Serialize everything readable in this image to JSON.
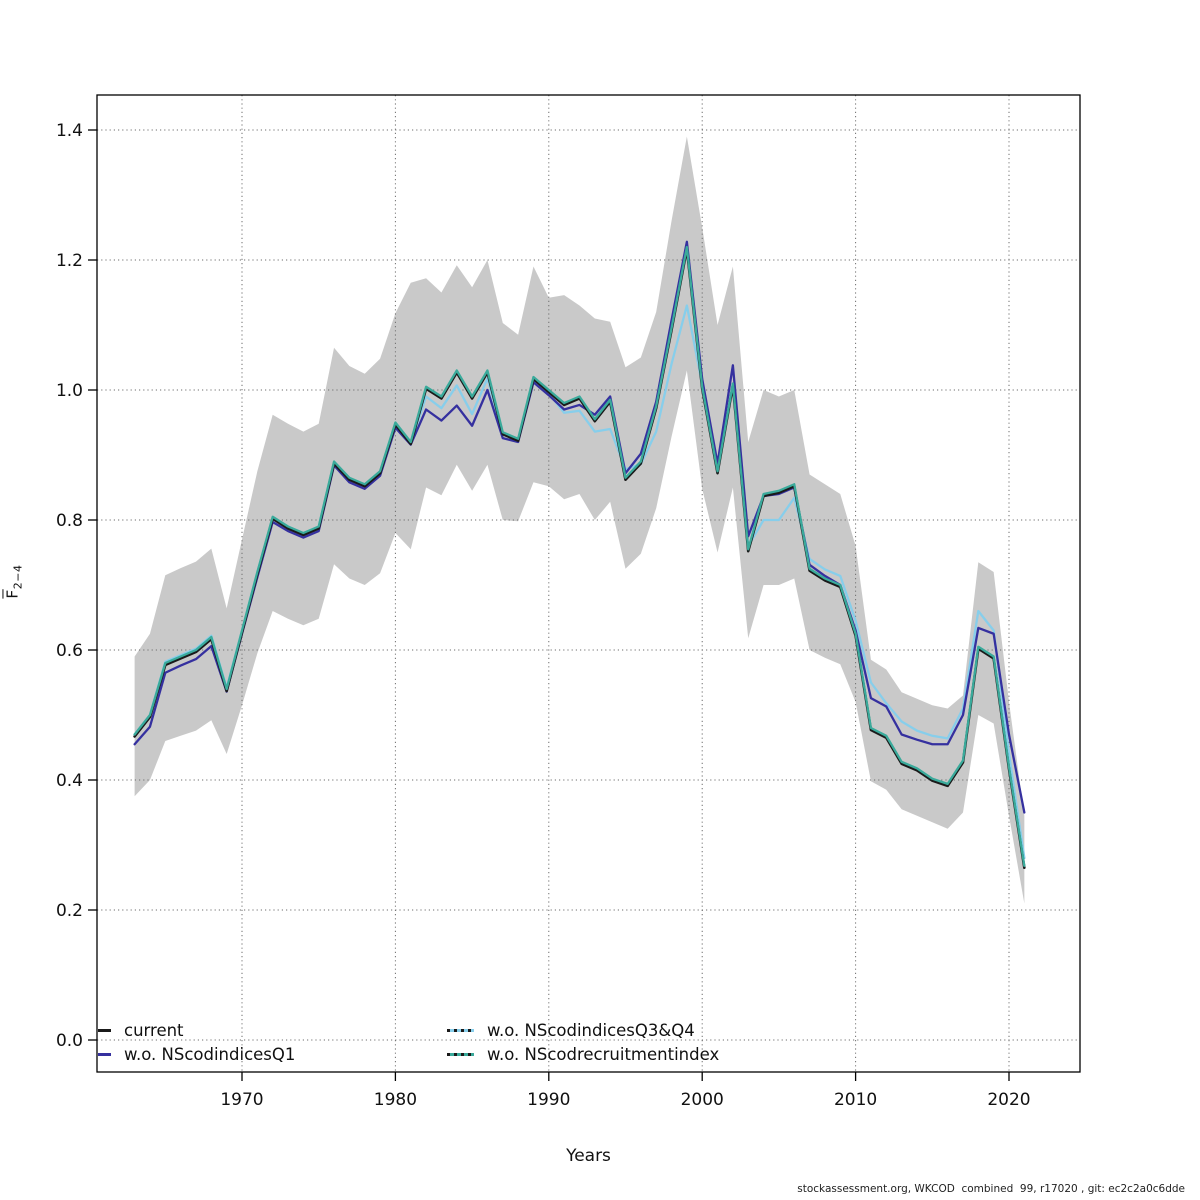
{
  "axes": {
    "x_label": "Years",
    "y_label_base": "F",
    "y_label_sub": "2−4",
    "x_tick_values": [
      1970,
      1980,
      1990,
      2000,
      2010,
      2020
    ],
    "x_tick_labels": [
      "1970",
      "1980",
      "1990",
      "2000",
      "2010",
      "2020"
    ],
    "y_tick_values": [
      0.0,
      0.2,
      0.4,
      0.6,
      0.8,
      1.0,
      1.2,
      1.4
    ],
    "y_tick_labels": [
      "0.0",
      "0.2",
      "0.4",
      "0.6",
      "0.8",
      "1.0",
      "1.2",
      "1.4"
    ]
  },
  "legend": {
    "items": [
      {
        "label": "current",
        "color": "#1a1a1a",
        "style": "solid-short"
      },
      {
        "label": "w.o. NScodindicesQ1",
        "color": "#35309f",
        "style": "solid-short"
      },
      {
        "label": "w.o. NScodindicesQ3&Q4",
        "color": "#87ceeb",
        "style": "dotted-long"
      },
      {
        "label": "w.o. NScodrecruitmentindex",
        "color": "#3aaa9b",
        "style": "dotted-long"
      }
    ]
  },
  "footer": {
    "text": "stockassessment.org, WKCOD  combined  99, r17020 , git: ec2c2a0c6dde"
  },
  "chart_data": {
    "type": "line",
    "title": "",
    "xlabel": "Years",
    "ylabel": "Fbar(2-4)",
    "xlim": [
      1960.6,
      2024.7
    ],
    "ylim": [
      -0.05,
      1.45
    ],
    "grid": "dotted",
    "legend_position": "bottom-left-inside",
    "x": [
      1963,
      1964,
      1965,
      1966,
      1967,
      1968,
      1969,
      1970,
      1971,
      1972,
      1973,
      1974,
      1975,
      1976,
      1977,
      1978,
      1979,
      1980,
      1981,
      1982,
      1983,
      1984,
      1985,
      1986,
      1987,
      1988,
      1989,
      1990,
      1991,
      1992,
      1993,
      1994,
      1995,
      1996,
      1997,
      1998,
      1999,
      2000,
      2001,
      2002,
      2003,
      2004,
      2005,
      2006,
      2007,
      2008,
      2009,
      2010,
      2011,
      2012,
      2013,
      2014,
      2015,
      2016,
      2017,
      2018,
      2019,
      2020,
      2021
    ],
    "series": [
      {
        "name": "current",
        "color": "#1a1a1a",
        "width": 2.6,
        "values": [
          0.467,
          0.497,
          0.577,
          0.587,
          0.597,
          0.617,
          0.537,
          0.627,
          0.717,
          0.802,
          0.787,
          0.777,
          0.787,
          0.887,
          0.862,
          0.852,
          0.872,
          0.947,
          0.917,
          1.002,
          0.987,
          1.027,
          0.987,
          1.027,
          0.932,
          0.922,
          1.017,
          0.997,
          0.977,
          0.987,
          0.952,
          0.982,
          0.862,
          0.887,
          0.972,
          1.092,
          1.217,
          1.002,
          0.872,
          1.007,
          0.752,
          0.837,
          0.842,
          0.852,
          0.722,
          0.707,
          0.697,
          0.622,
          0.477,
          0.465,
          0.425,
          0.415,
          0.399,
          0.391,
          0.427,
          0.602,
          0.587,
          0.417,
          0.265
        ]
      },
      {
        "name": "w.o. NScodindicesQ1",
        "color": "#35309f",
        "width": 2.3,
        "values": [
          0.455,
          0.482,
          0.565,
          0.576,
          0.586,
          0.606,
          0.536,
          0.625,
          0.712,
          0.797,
          0.783,
          0.773,
          0.783,
          0.884,
          0.858,
          0.848,
          0.868,
          0.942,
          0.916,
          0.97,
          0.953,
          0.976,
          0.945,
          1.0,
          0.926,
          0.92,
          1.012,
          0.992,
          0.97,
          0.977,
          0.962,
          0.99,
          0.872,
          0.902,
          0.982,
          1.107,
          1.228,
          1.017,
          0.887,
          1.038,
          0.775,
          0.837,
          0.84,
          0.85,
          0.731,
          0.714,
          0.7,
          0.63,
          0.526,
          0.513,
          0.47,
          0.462,
          0.455,
          0.455,
          0.5,
          0.634,
          0.625,
          0.47,
          0.35
        ]
      },
      {
        "name": "w.o. NScodindicesQ3&Q4",
        "color": "#87ceeb",
        "width": 2.3,
        "values": [
          0.47,
          0.5,
          0.582,
          0.592,
          0.602,
          0.622,
          0.542,
          0.63,
          0.72,
          0.803,
          0.79,
          0.78,
          0.79,
          0.888,
          0.863,
          0.853,
          0.873,
          0.948,
          0.918,
          0.99,
          0.972,
          1.007,
          0.963,
          1.018,
          0.932,
          0.924,
          1.014,
          0.995,
          0.965,
          0.968,
          0.936,
          0.94,
          0.878,
          0.886,
          0.936,
          1.04,
          1.13,
          1.008,
          0.88,
          1.008,
          0.76,
          0.8,
          0.8,
          0.834,
          0.74,
          0.724,
          0.714,
          0.645,
          0.55,
          0.518,
          0.49,
          0.476,
          0.468,
          0.464,
          0.51,
          0.66,
          0.63,
          0.44,
          0.28
        ]
      },
      {
        "name": "w.o. NScodrecruitmentindex",
        "color": "#3aaa9b",
        "width": 2.3,
        "values": [
          0.47,
          0.5,
          0.58,
          0.59,
          0.6,
          0.62,
          0.54,
          0.63,
          0.72,
          0.805,
          0.79,
          0.78,
          0.79,
          0.89,
          0.865,
          0.855,
          0.875,
          0.95,
          0.92,
          1.005,
          0.99,
          1.03,
          0.99,
          1.03,
          0.935,
          0.925,
          1.02,
          1.0,
          0.98,
          0.99,
          0.955,
          0.985,
          0.865,
          0.89,
          0.975,
          1.095,
          1.22,
          1.005,
          0.875,
          1.01,
          0.755,
          0.84,
          0.845,
          0.855,
          0.725,
          0.71,
          0.7,
          0.625,
          0.48,
          0.468,
          0.428,
          0.418,
          0.402,
          0.394,
          0.43,
          0.605,
          0.59,
          0.42,
          0.268
        ]
      }
    ],
    "band": {
      "name": "confidence band (current)",
      "color": "#c9c9c9",
      "lower": [
        0.375,
        0.4,
        0.46,
        0.468,
        0.476,
        0.492,
        0.44,
        0.515,
        0.595,
        0.66,
        0.648,
        0.638,
        0.648,
        0.732,
        0.71,
        0.7,
        0.718,
        0.78,
        0.755,
        0.85,
        0.838,
        0.885,
        0.845,
        0.885,
        0.8,
        0.798,
        0.858,
        0.852,
        0.832,
        0.84,
        0.8,
        0.828,
        0.725,
        0.748,
        0.818,
        0.928,
        1.03,
        0.848,
        0.75,
        0.85,
        0.618,
        0.7,
        0.7,
        0.71,
        0.6,
        0.588,
        0.578,
        0.52,
        0.398,
        0.385,
        0.355,
        0.345,
        0.335,
        0.325,
        0.35,
        0.5,
        0.487,
        0.345,
        0.21
      ],
      "upper": [
        0.59,
        0.625,
        0.715,
        0.726,
        0.736,
        0.756,
        0.664,
        0.77,
        0.875,
        0.962,
        0.948,
        0.936,
        0.948,
        1.065,
        1.037,
        1.025,
        1.048,
        1.118,
        1.165,
        1.172,
        1.15,
        1.192,
        1.158,
        1.2,
        1.103,
        1.085,
        1.19,
        1.142,
        1.146,
        1.13,
        1.11,
        1.105,
        1.035,
        1.05,
        1.12,
        1.26,
        1.39,
        1.25,
        1.1,
        1.19,
        0.92,
        1.0,
        0.99,
        1.0,
        0.87,
        0.855,
        0.84,
        0.76,
        0.585,
        0.57,
        0.535,
        0.525,
        0.515,
        0.51,
        0.53,
        0.735,
        0.72,
        0.52,
        0.345
      ]
    }
  }
}
